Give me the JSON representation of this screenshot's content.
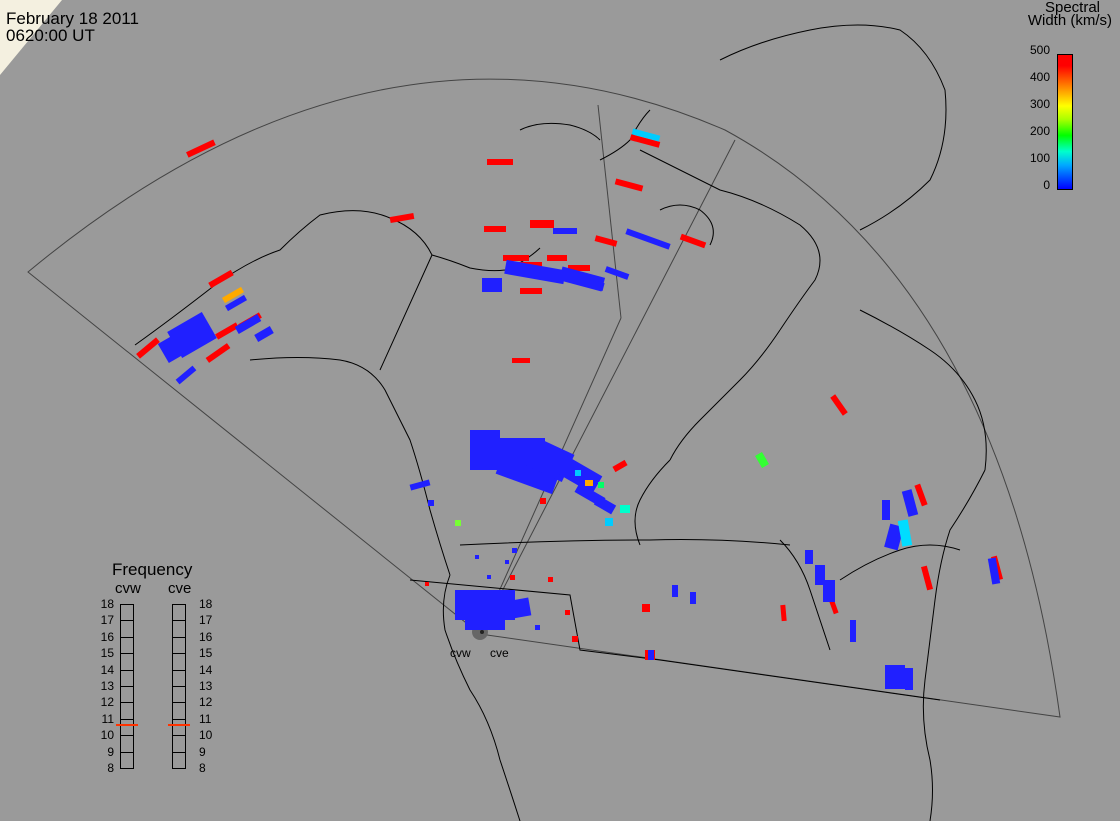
{
  "header": {
    "date": "February  18 2011",
    "time": "0620:00 UT"
  },
  "legend": {
    "title_line1": "Spectral",
    "title_line2": "Width (km/s)",
    "ticks": [
      "500",
      "400",
      "300",
      "200",
      "100",
      "0"
    ]
  },
  "frequency_panel": {
    "title": "Frequency",
    "radars": [
      {
        "name": "cvw",
        "selected_mhz": 10.7
      },
      {
        "name": "cve",
        "selected_mhz": 10.7
      }
    ],
    "ticks": [
      "18",
      "17",
      "16",
      "15",
      "14",
      "13",
      "12",
      "11",
      "10",
      "9",
      "8"
    ]
  },
  "sites": {
    "west": "cvw",
    "east": "cve"
  },
  "colors": {
    "background": "#9a9a9a",
    "coastline": "#000000",
    "fov_outline": "#444444",
    "low_width": "#2020ff",
    "high_width": "#ff0000",
    "mid_cyan": "#00ccff",
    "mid_green": "#33ff33",
    "mid_orange": "#ffaa00"
  }
}
